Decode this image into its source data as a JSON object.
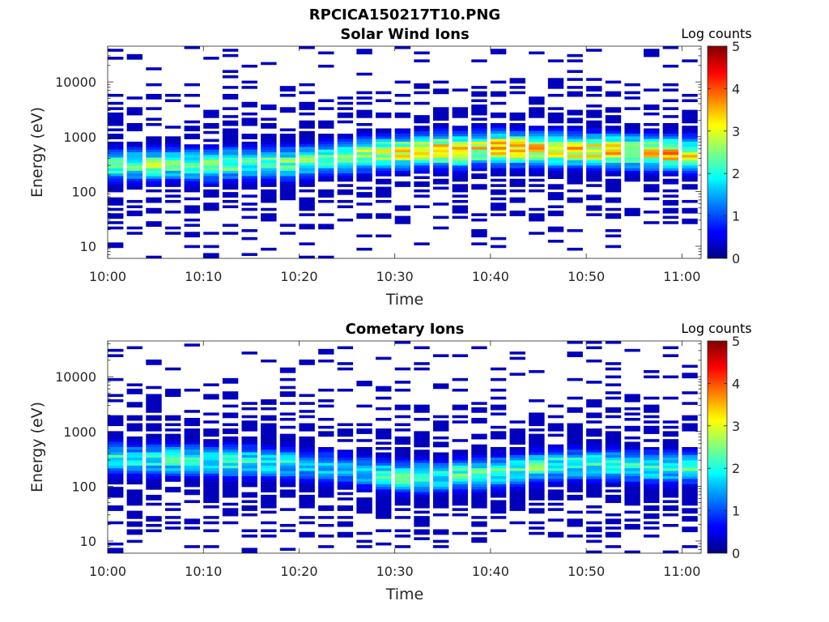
{
  "figure_title": "RPCICA150217T10.PNG",
  "colors": {
    "axis": "#262626",
    "background": "#ffffff",
    "colormap": "jet"
  },
  "chart_data": [
    {
      "type": "heatmap",
      "title": "Solar Wind Ions",
      "xlabel": "Time",
      "ylabel": "Energy (eV)",
      "yscale": "log",
      "ylim": [
        6,
        45000
      ],
      "xlim": [
        "10:00",
        "11:02"
      ],
      "xticks": [
        "10:00",
        "10:10",
        "10:20",
        "10:30",
        "10:40",
        "10:50",
        "11:00"
      ],
      "yticks": [
        "10",
        "100",
        "1000",
        "10000"
      ],
      "colorbar": {
        "label": "Log counts",
        "range": [
          0,
          5
        ],
        "ticks": [
          "0",
          "1",
          "2",
          "3",
          "4",
          "5"
        ]
      },
      "core_center_eV": [
        300,
        300,
        300,
        320,
        300,
        300,
        320,
        320,
        320,
        330,
        360,
        400,
        420,
        470,
        500,
        520,
        550,
        560,
        550,
        600,
        620,
        600,
        600,
        580,
        560,
        560,
        540,
        530,
        520,
        500,
        480
      ],
      "core_peak_log_counts": [
        2.2,
        2.3,
        2.5,
        2.4,
        2.3,
        2.3,
        2.4,
        2.2,
        2.3,
        2.3,
        2.4,
        2.2,
        2.5,
        2.8,
        2.8,
        3.0,
        3.0,
        3.6,
        3.3,
        3.0,
        3.4,
        3.4,
        3.2,
        3.4,
        3.3,
        3.2,
        3.4,
        3.2,
        3.3,
        3.4,
        3.0
      ],
      "sparse_level_log_counts": 0.3
    },
    {
      "type": "heatmap",
      "title": "Cometary Ions",
      "xlabel": "Time",
      "ylabel": "Energy (eV)",
      "yscale": "log",
      "ylim": [
        6,
        45000
      ],
      "xlim": [
        "10:00",
        "11:02"
      ],
      "xticks": [
        "10:00",
        "10:10",
        "10:20",
        "10:30",
        "10:40",
        "10:50",
        "11:00"
      ],
      "yticks": [
        "10",
        "100",
        "1000",
        "10000"
      ],
      "colorbar": {
        "label": "Log counts",
        "range": [
          0,
          5
        ],
        "ticks": [
          "0",
          "1",
          "2",
          "3",
          "4",
          "5"
        ]
      },
      "core_center_eV": [
        320,
        300,
        300,
        300,
        300,
        280,
        280,
        280,
        270,
        260,
        240,
        220,
        200,
        180,
        160,
        150,
        150,
        150,
        160,
        170,
        180,
        200,
        220,
        240,
        250,
        250,
        240,
        230,
        220,
        220,
        220
      ],
      "core_peak_log_counts": [
        1.9,
        1.9,
        2.0,
        2.0,
        2.0,
        2.0,
        2.1,
        2.0,
        1.9,
        1.8,
        1.6,
        1.6,
        1.5,
        1.7,
        2.1,
        2.2,
        2.2,
        2.0,
        2.2,
        2.1,
        2.2,
        2.1,
        2.2,
        2.1,
        2.0,
        2.0,
        2.0,
        1.9,
        2.1,
        2.0,
        2.1
      ],
      "sparse_level_log_counts": 0.3
    }
  ]
}
